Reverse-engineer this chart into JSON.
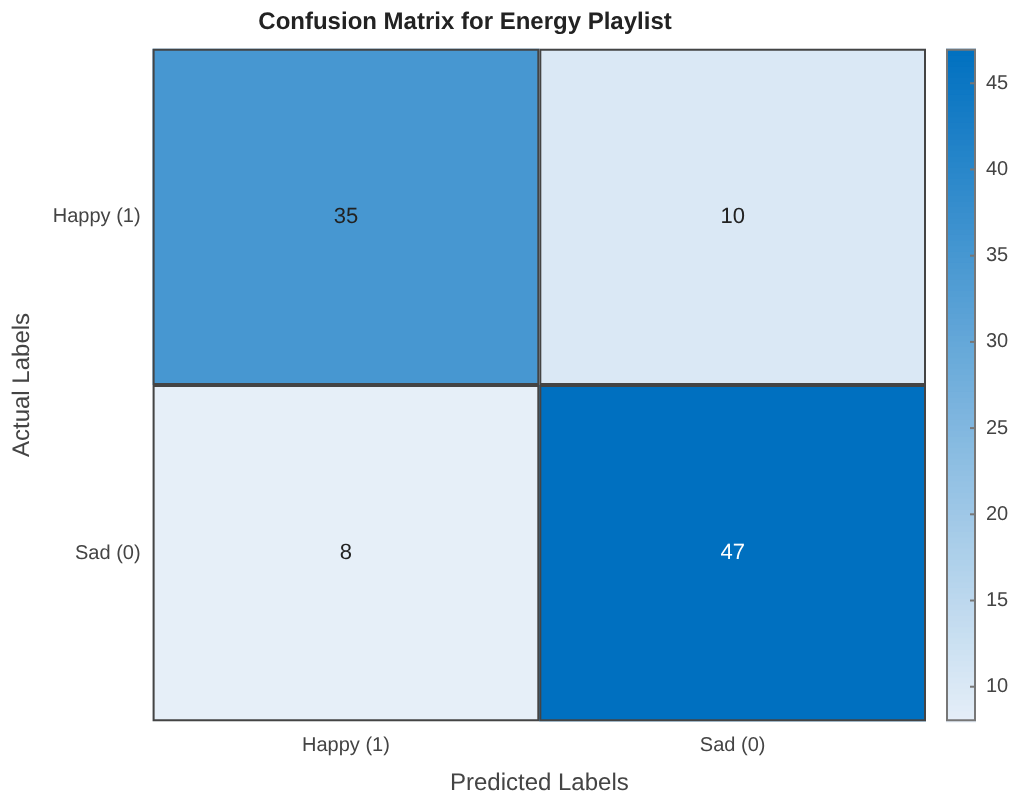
{
  "chart_data": {
    "type": "heatmap",
    "title": "Confusion Matrix for Energy Playlist",
    "xlabel": "Predicted Labels",
    "ylabel": "Actual Labels",
    "categories": [
      "Happy (1)",
      "Sad (0)"
    ],
    "y_categories": [
      "Happy (1)",
      "Sad (0)"
    ],
    "cells": [
      [
        35,
        10
      ],
      [
        8,
        47
      ]
    ],
    "data_labels": true,
    "clim": [
      8,
      47
    ],
    "cticks": [
      10,
      15,
      20,
      25,
      30,
      35,
      40,
      45
    ]
  }
}
